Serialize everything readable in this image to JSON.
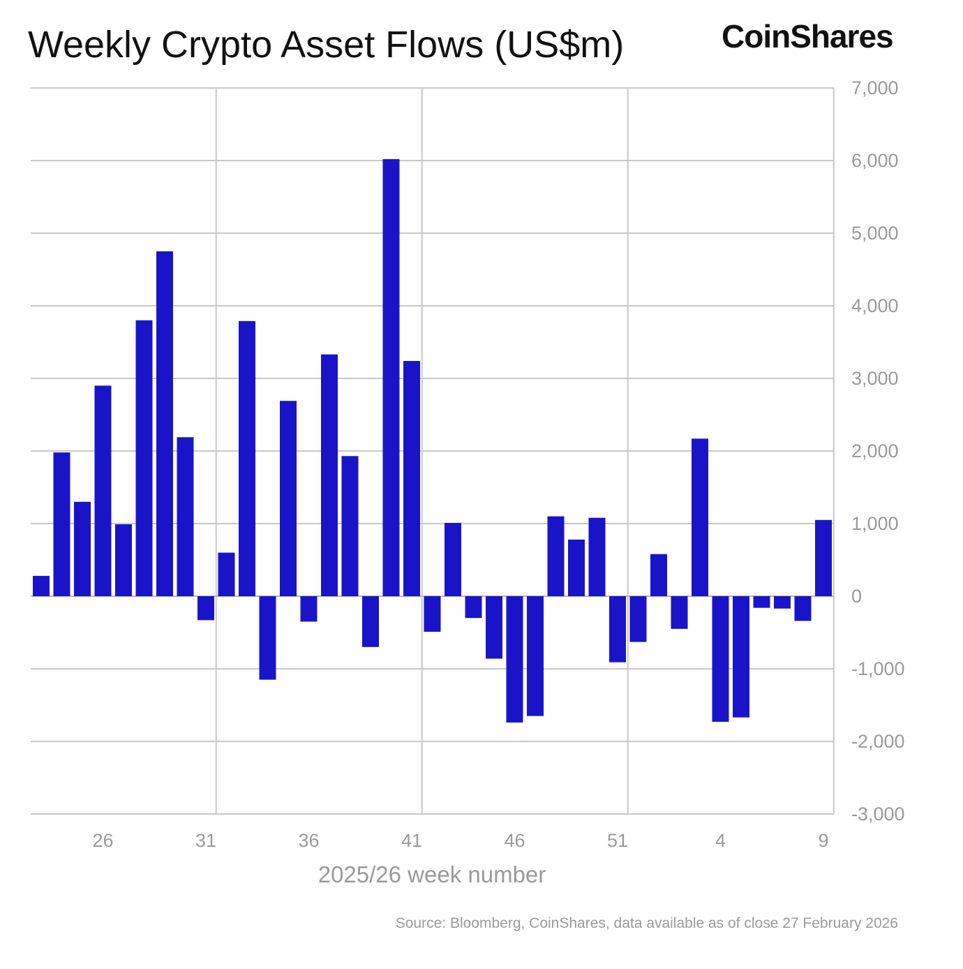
{
  "chart_data": {
    "type": "bar",
    "title": "Weekly Crypto Asset Flows (US$m)",
    "logo": "CoinShares",
    "xlabel": "2025/26 week number",
    "ylabel": "",
    "source": "Source: Bloomberg, CoinShares, data available as of close 27 February 2026",
    "ylim": [
      -3000,
      7000
    ],
    "yticks": [
      "7,000",
      "6,000",
      "5,000",
      "4,000",
      "3,000",
      "2,000",
      "1,000",
      "0",
      "-1,000",
      "-2,000",
      "-3,000"
    ],
    "ytick_values": [
      7000,
      6000,
      5000,
      4000,
      3000,
      2000,
      1000,
      0,
      -1000,
      -2000,
      -3000
    ],
    "xtick_labels": [
      "26",
      "31",
      "36",
      "41",
      "46",
      "51",
      "4",
      "9"
    ],
    "grid": true,
    "bar_color": "#1a14c8",
    "categories": [
      23,
      24,
      25,
      26,
      27,
      28,
      29,
      30,
      31,
      32,
      33,
      34,
      35,
      36,
      37,
      38,
      39,
      40,
      41,
      42,
      43,
      44,
      45,
      46,
      47,
      48,
      49,
      50,
      51,
      52,
      1,
      2,
      3,
      4,
      5,
      6,
      7,
      8,
      9
    ],
    "values": [
      280,
      1980,
      1300,
      2900,
      990,
      3800,
      4750,
      2190,
      -330,
      600,
      3790,
      -1150,
      2690,
      -350,
      3330,
      1930,
      -700,
      6020,
      3240,
      -490,
      1010,
      -300,
      -860,
      -1740,
      -1650,
      1100,
      780,
      1080,
      -910,
      -630,
      580,
      -450,
      2170,
      -1730,
      -1670,
      -160,
      -170,
      -340,
      1050
    ]
  }
}
